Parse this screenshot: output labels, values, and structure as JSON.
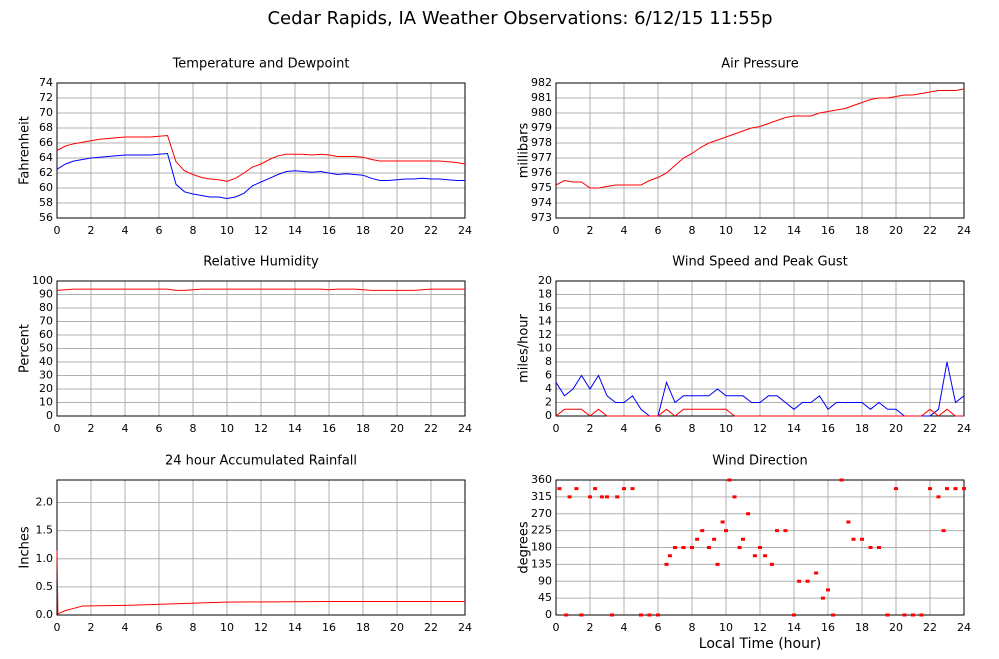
{
  "title": "Cedar Rapids, IA Weather Observations: 6/12/15 11:55p",
  "chart_data": [
    {
      "type": "line",
      "title": "Temperature and Dewpoint",
      "y_label": "Fahrenheit",
      "x": [
        0,
        0.5,
        1,
        1.5,
        2,
        2.5,
        3,
        3.5,
        4,
        4.5,
        5,
        5.5,
        6,
        6.5,
        7,
        7.5,
        8,
        8.5,
        9,
        9.5,
        10,
        10.5,
        11,
        11.5,
        12,
        12.5,
        13,
        13.5,
        14,
        14.5,
        15,
        15.5,
        16,
        16.5,
        17,
        17.5,
        18,
        18.5,
        19,
        19.5,
        20,
        20.5,
        21,
        21.5,
        22,
        22.5,
        23,
        23.5,
        24
      ],
      "series": [
        {
          "color": "#ff0000",
          "values": [
            65,
            65.6,
            65.9,
            66.1,
            66.3,
            66.5,
            66.6,
            66.7,
            66.8,
            66.8,
            66.8,
            66.8,
            66.9,
            67,
            63.5,
            62.3,
            61.8,
            61.4,
            61.2,
            61.1,
            60.9,
            61.3,
            62,
            62.8,
            63.2,
            63.8,
            64.3,
            64.5,
            64.5,
            64.5,
            64.4,
            64.5,
            64.4,
            64.2,
            64.2,
            64.2,
            64.1,
            63.8,
            63.6,
            63.6,
            63.6,
            63.6,
            63.6,
            63.6,
            63.6,
            63.6,
            63.5,
            63.4,
            63.2
          ]
        },
        {
          "color": "#0000ff",
          "values": [
            62.5,
            63.2,
            63.6,
            63.8,
            64,
            64.1,
            64.2,
            64.3,
            64.4,
            64.4,
            64.4,
            64.4,
            64.5,
            64.6,
            60.5,
            59.5,
            59.2,
            59,
            58.8,
            58.8,
            58.6,
            58.8,
            59.3,
            60.3,
            60.8,
            61.3,
            61.8,
            62.2,
            62.3,
            62.2,
            62.1,
            62.2,
            62,
            61.8,
            61.9,
            61.8,
            61.7,
            61.3,
            61,
            61,
            61.1,
            61.2,
            61.2,
            61.3,
            61.2,
            61.2,
            61.1,
            61,
            61
          ]
        }
      ],
      "xlim": [
        0,
        24
      ],
      "xticks": [
        0,
        2,
        4,
        6,
        8,
        10,
        12,
        14,
        16,
        18,
        20,
        22,
        24
      ],
      "ylim": [
        56,
        74
      ],
      "yticks": [
        56,
        58,
        60,
        62,
        64,
        66,
        68,
        70,
        72,
        74
      ],
      "grid": true
    },
    {
      "type": "line",
      "title": "Air Pressure",
      "y_label": "millibars",
      "x": [
        0,
        0.5,
        1,
        1.5,
        2,
        2.5,
        3,
        3.5,
        4,
        4.5,
        5,
        5.5,
        6,
        6.5,
        7,
        7.5,
        8,
        8.5,
        9,
        9.5,
        10,
        10.5,
        11,
        11.5,
        12,
        12.5,
        13,
        13.5,
        14,
        14.5,
        15,
        15.5,
        16,
        16.5,
        17,
        17.5,
        18,
        18.5,
        19,
        19.5,
        20,
        20.5,
        21,
        21.5,
        22,
        22.5,
        23,
        23.5,
        24
      ],
      "series": [
        {
          "color": "#ff0000",
          "values": [
            975.2,
            975.5,
            975.4,
            975.4,
            975,
            975,
            975.1,
            975.2,
            975.2,
            975.2,
            975.2,
            975.5,
            975.7,
            976,
            976.5,
            977,
            977.3,
            977.7,
            978,
            978.2,
            978.4,
            978.6,
            978.8,
            979,
            979.1,
            979.3,
            979.5,
            979.7,
            979.8,
            979.8,
            979.8,
            980,
            980.1,
            980.2,
            980.3,
            980.5,
            980.7,
            980.9,
            981,
            981,
            981.1,
            981.2,
            981.2,
            981.3,
            981.4,
            981.5,
            981.5,
            981.5,
            981.6
          ]
        }
      ],
      "xlim": [
        0,
        24
      ],
      "xticks": [
        0,
        2,
        4,
        6,
        8,
        10,
        12,
        14,
        16,
        18,
        20,
        22,
        24
      ],
      "ylim": [
        973,
        982
      ],
      "yticks": [
        973,
        974,
        975,
        976,
        977,
        978,
        979,
        980,
        981,
        982
      ],
      "grid": true
    },
    {
      "type": "line",
      "title": "Relative Humidity",
      "y_label": "Percent",
      "x": [
        0,
        0.5,
        1,
        1.5,
        2,
        2.5,
        3,
        3.5,
        4,
        4.5,
        5,
        5.5,
        6,
        6.5,
        7,
        7.5,
        8,
        8.5,
        9,
        9.5,
        10,
        10.5,
        11,
        11.5,
        12,
        12.5,
        13,
        13.5,
        14,
        14.5,
        15,
        15.5,
        16,
        16.5,
        17,
        17.5,
        18,
        18.5,
        19,
        19.5,
        20,
        20.5,
        21,
        21.5,
        22,
        22.5,
        23,
        23.5,
        24
      ],
      "series": [
        {
          "color": "#ff0000",
          "values": [
            93,
            93.5,
            94,
            94,
            94,
            94,
            94,
            94,
            94,
            94,
            94,
            94,
            94,
            94,
            93,
            93,
            93.5,
            94,
            94,
            94,
            94,
            94,
            94,
            94,
            94,
            94,
            94,
            94,
            94,
            94,
            94,
            94,
            93.5,
            94,
            94,
            94,
            93.5,
            93,
            93,
            93,
            93,
            93,
            93,
            93.5,
            94,
            94,
            94,
            94,
            94
          ]
        }
      ],
      "xlim": [
        0,
        24
      ],
      "xticks": [
        0,
        2,
        4,
        6,
        8,
        10,
        12,
        14,
        16,
        18,
        20,
        22,
        24
      ],
      "ylim": [
        0,
        100
      ],
      "yticks": [
        0,
        10,
        20,
        30,
        40,
        50,
        60,
        70,
        80,
        90,
        100
      ],
      "grid": true
    },
    {
      "type": "line",
      "title": "Wind Speed and Peak Gust",
      "y_label": "miles/hour",
      "x": [
        0,
        0.5,
        1,
        1.5,
        2,
        2.5,
        3,
        3.5,
        4,
        4.5,
        5,
        5.5,
        6,
        6.5,
        7,
        7.5,
        8,
        8.5,
        9,
        9.5,
        10,
        10.5,
        11,
        11.5,
        12,
        12.5,
        13,
        13.5,
        14,
        14.5,
        15,
        15.5,
        16,
        16.5,
        17,
        17.5,
        18,
        18.5,
        19,
        19.5,
        20,
        20.5,
        21,
        21.5,
        22,
        22.5,
        23,
        23.5,
        24
      ],
      "series": [
        {
          "color": "#0000ff",
          "values": [
            5,
            3,
            4,
            6,
            4,
            6,
            3,
            2,
            2,
            3,
            1,
            0,
            0,
            5,
            2,
            3,
            3,
            3,
            3,
            4,
            3,
            3,
            3,
            2,
            2,
            3,
            3,
            2,
            1,
            2,
            2,
            3,
            1,
            2,
            2,
            2,
            2,
            1,
            2,
            1,
            1,
            0,
            0,
            0,
            0,
            1,
            8,
            2,
            3
          ]
        },
        {
          "color": "#ff0000",
          "values": [
            0,
            1,
            1,
            1,
            0,
            1,
            0,
            0,
            0,
            0,
            0,
            0,
            0,
            1,
            0,
            1,
            1,
            1,
            1,
            1,
            1,
            0,
            0,
            0,
            0,
            0,
            0,
            0,
            0,
            0,
            0,
            0,
            0,
            0,
            0,
            0,
            0,
            0,
            0,
            0,
            0,
            0,
            0,
            0,
            1,
            0,
            1,
            0,
            0
          ]
        }
      ],
      "xlim": [
        0,
        24
      ],
      "xticks": [
        0,
        2,
        4,
        6,
        8,
        10,
        12,
        14,
        16,
        18,
        20,
        22,
        24
      ],
      "ylim": [
        0,
        20
      ],
      "yticks": [
        0,
        2,
        4,
        6,
        8,
        10,
        12,
        14,
        16,
        18,
        20
      ],
      "grid": true
    },
    {
      "type": "line",
      "title": "24 hour Accumulated Rainfall",
      "y_label": "Inches",
      "x": [
        0,
        0.05,
        0.5,
        1,
        1.5,
        4,
        7,
        9,
        10,
        16,
        24
      ],
      "series": [
        {
          "color": "#ff0000",
          "values": [
            1.15,
            0.02,
            0.08,
            0.12,
            0.16,
            0.17,
            0.2,
            0.22,
            0.23,
            0.24,
            0.24
          ]
        }
      ],
      "xlim": [
        0,
        24
      ],
      "xticks": [
        0,
        2,
        4,
        6,
        8,
        10,
        12,
        14,
        16,
        18,
        20,
        22,
        24
      ],
      "ylim": [
        0,
        2.4
      ],
      "yticks": [
        {
          "value": 0,
          "label": "0.0"
        },
        {
          "value": 0.5,
          "label": "0.5"
        },
        {
          "value": 1,
          "label": "1.0"
        },
        {
          "value": 1.5,
          "label": "1.5"
        },
        {
          "value": 2,
          "label": "2.0"
        }
      ],
      "grid": true
    },
    {
      "type": "scatter",
      "title": "Wind Direction",
      "y_label": "degrees",
      "x_label": "Local Time (hour)",
      "x": [
        0.2,
        0.6,
        0.8,
        1.2,
        1.5,
        2,
        2.3,
        2.7,
        3,
        3.3,
        3.6,
        4,
        4.5,
        5,
        5.5,
        6,
        6.5,
        6.7,
        7,
        7.5,
        8,
        8.3,
        8.6,
        9,
        9.3,
        9.5,
        9.8,
        10,
        10.2,
        10.5,
        10.8,
        11,
        11.3,
        11.7,
        12,
        12.3,
        12.7,
        13,
        13.5,
        14,
        14.3,
        14.8,
        15.3,
        15.7,
        16,
        16.3,
        16.8,
        17.2,
        17.5,
        18,
        18.5,
        19,
        19.5,
        20,
        20.5,
        21,
        21.5,
        22,
        22.5,
        22.8,
        23,
        23.5,
        24
      ],
      "series": [
        {
          "color": "#ff0000",
          "values": [
            337,
            0,
            315,
            337,
            0,
            315,
            337,
            315,
            315,
            0,
            315,
            337,
            337,
            0,
            0,
            0,
            135,
            158,
            180,
            180,
            180,
            202,
            225,
            180,
            202,
            135,
            248,
            225,
            360,
            315,
            180,
            202,
            270,
            158,
            180,
            158,
            135,
            225,
            225,
            0,
            90,
            90,
            112,
            45,
            67,
            0,
            360,
            248,
            202,
            202,
            180,
            180,
            0,
            337,
            0,
            0,
            0,
            337,
            315,
            225,
            337,
            337,
            337
          ]
        }
      ],
      "xlim": [
        0,
        24
      ],
      "xticks": [
        0,
        2,
        4,
        6,
        8,
        10,
        12,
        14,
        16,
        18,
        20,
        22,
        24
      ],
      "ylim": [
        0,
        360
      ],
      "yticks": [
        0,
        45,
        90,
        135,
        180,
        225,
        270,
        315,
        360
      ],
      "grid": true
    }
  ]
}
